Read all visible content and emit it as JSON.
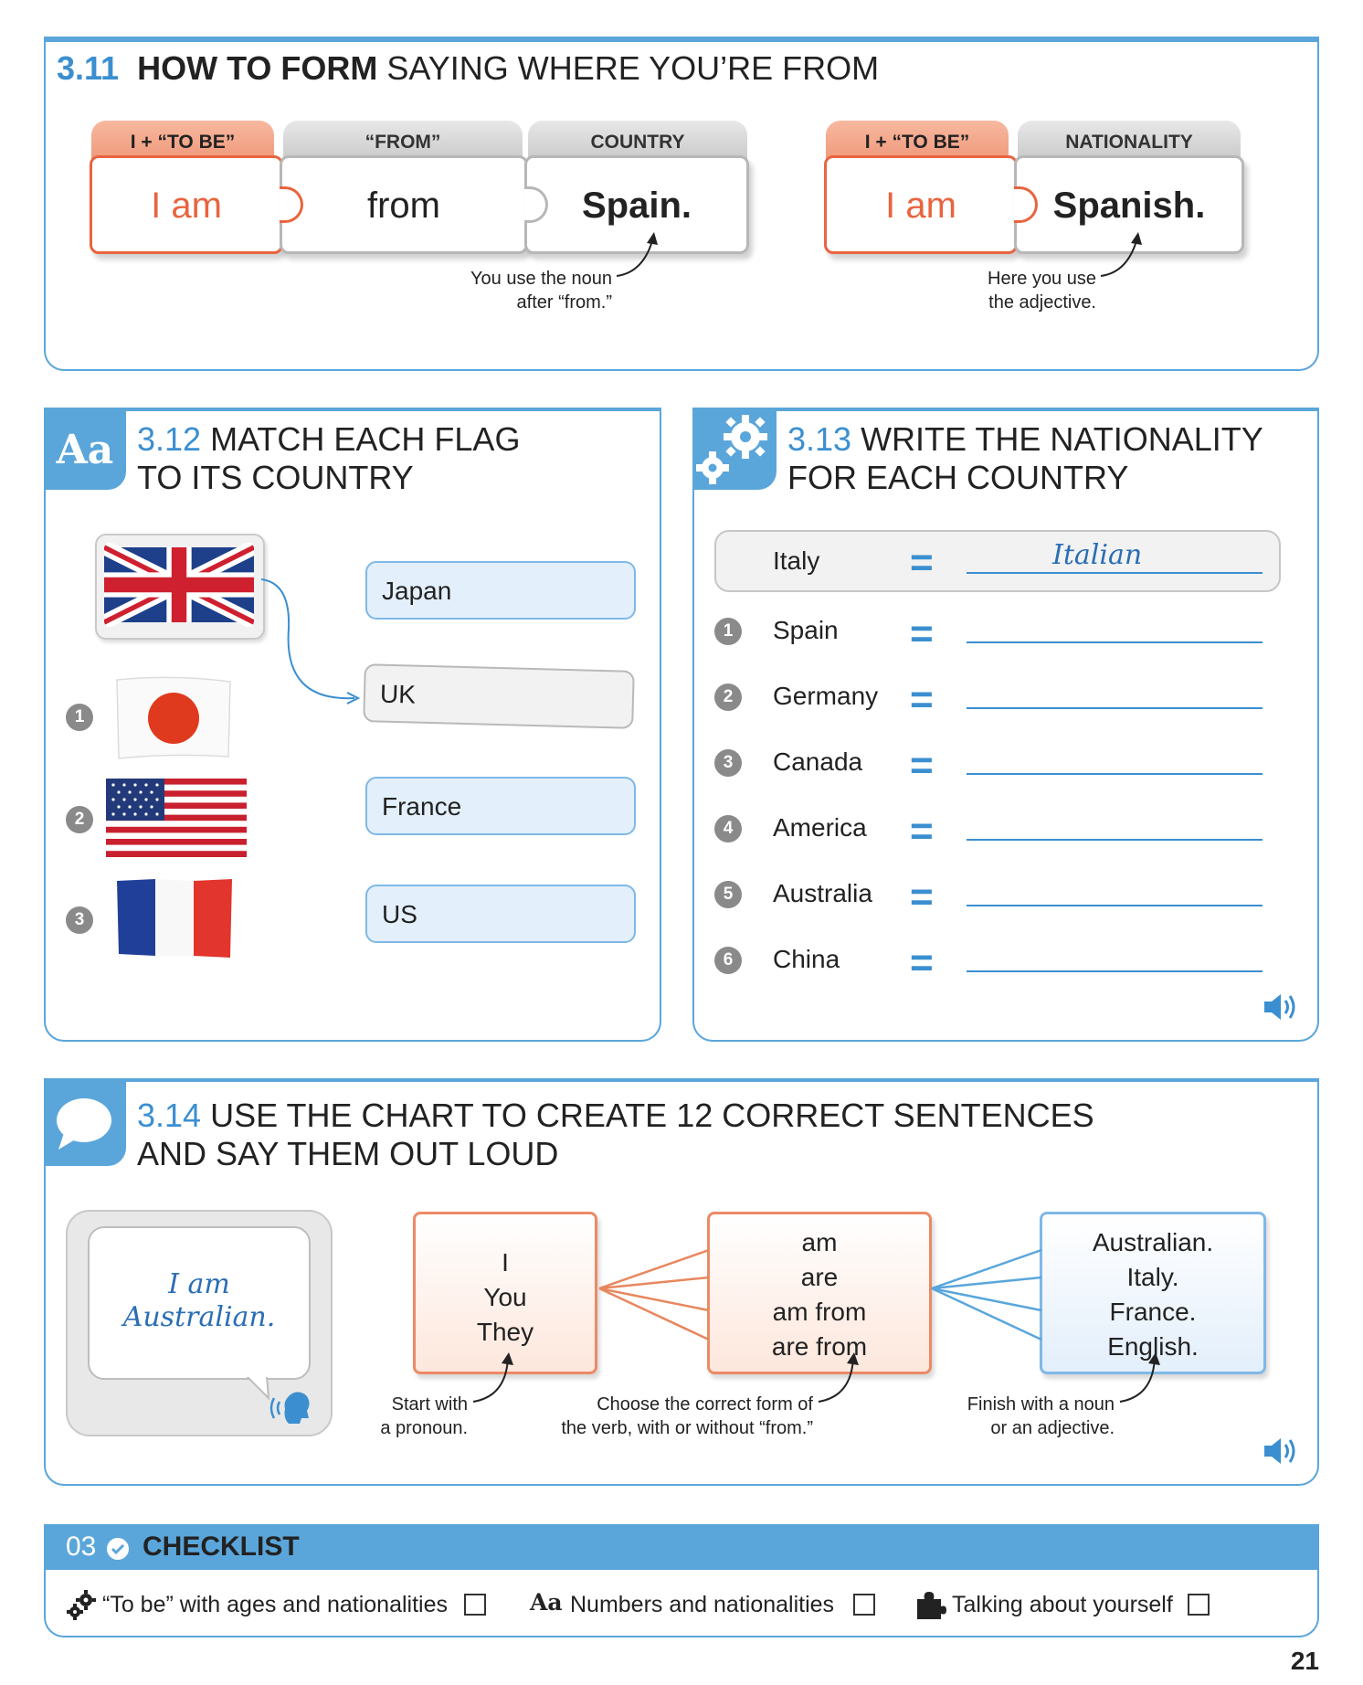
{
  "s311": {
    "num": "3.11",
    "title_bold": "HOW TO FORM",
    "title_rest": " SAYING WHERE YOU’RE FROM",
    "tabs": [
      "I + “TO BE”",
      "“FROM”",
      "COUNTRY",
      "I + “TO BE”",
      "NATIONALITY"
    ],
    "pieces": [
      "I am",
      "from",
      "Spain.",
      "I am",
      "Spanish."
    ],
    "note1_line1": "You use the noun",
    "note1_line2": "after “from.”",
    "note2_line1": "Here you use",
    "note2_line2": "the adjective."
  },
  "s312": {
    "icon": "Aa",
    "num": "3.12",
    "title_line1": " MATCH EACH FLAG",
    "title_line2": "TO ITS COUNTRY",
    "flags": [
      {
        "num": "",
        "name": "uk-flag-icon"
      },
      {
        "num": "1",
        "name": "japan-flag-icon"
      },
      {
        "num": "2",
        "name": "us-flag-icon"
      },
      {
        "num": "3",
        "name": "france-flag-icon"
      }
    ],
    "countries": [
      "Japan",
      "UK",
      "France",
      "US"
    ]
  },
  "s313": {
    "num": "3.13",
    "title_line1": " WRITE THE NATIONALITY",
    "title_line2": "FOR EACH COUNTRY",
    "example_country": "Italy",
    "example_answer": "Italian",
    "eq": "=",
    "rows": [
      {
        "num": "1",
        "country": "Spain"
      },
      {
        "num": "2",
        "country": "Germany"
      },
      {
        "num": "3",
        "country": "Canada"
      },
      {
        "num": "4",
        "country": "America"
      },
      {
        "num": "5",
        "country": "Australia"
      },
      {
        "num": "6",
        "country": "China"
      }
    ]
  },
  "s314": {
    "num": "3.14",
    "title_line1": " USE THE CHART TO CREATE 12 CORRECT SENTENCES",
    "title_line2": "AND SAY THEM OUT LOUD",
    "bubble_line1": "I am",
    "bubble_line2": "Australian.",
    "col1": [
      "I",
      "You",
      "They"
    ],
    "col2": [
      "am",
      "are",
      "am from",
      "are from"
    ],
    "col3": [
      "Australian.",
      "Italy.",
      "France.",
      "English."
    ],
    "note1_line1": "Start with",
    "note1_line2": "a pronoun.",
    "note2_line1": "Choose the correct form of",
    "note2_line2": "the verb, with or without “from.”",
    "note3_line1": "Finish with a noun",
    "note3_line2": "or an adjective."
  },
  "checklist": {
    "num": "03",
    "title": "CHECKLIST",
    "items": [
      "“To be” with ages and nationalities",
      "Numbers and nationalities",
      "Talking about yourself"
    ],
    "aa": "Aa"
  },
  "page_number": "21",
  "colors": {
    "blue": "#5aa6db",
    "orange": "#e8643f",
    "text_blue": "#3b8fd0"
  }
}
